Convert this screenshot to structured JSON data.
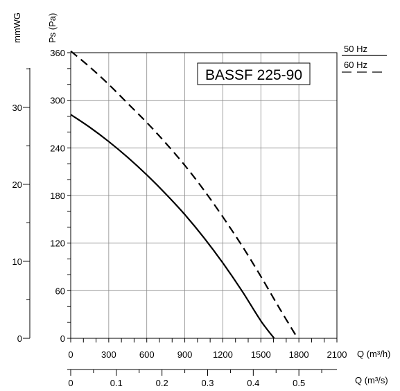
{
  "chart_data": {
    "type": "line",
    "title": "BASSF 225-90",
    "y_left_outer": {
      "label": "mmWG",
      "range": [
        0,
        37
      ],
      "ticks": [
        0,
        10,
        20,
        30
      ],
      "tick_labels": [
        "0",
        "10",
        "20",
        "30"
      ]
    },
    "y_left_inner": {
      "label": "Ps (Pa)",
      "range": [
        0,
        360
      ],
      "ticks": [
        0,
        60,
        120,
        180,
        240,
        300,
        360
      ],
      "tick_labels": [
        "0",
        "60",
        "120",
        "180",
        "240",
        "300",
        "360"
      ]
    },
    "x_primary": {
      "label": "Q (m³/h)",
      "range": [
        0,
        2100
      ],
      "ticks": [
        0,
        300,
        600,
        900,
        1200,
        1500,
        1800,
        2100
      ],
      "tick_labels": [
        "0",
        "300",
        "600",
        "900",
        "1200",
        "1500",
        "1800",
        "2100"
      ]
    },
    "x_secondary": {
      "label": "Q (m³/s)",
      "range": [
        0,
        0.5833
      ],
      "ticks": [
        0,
        0.1,
        0.2,
        0.3,
        0.4,
        0.5
      ],
      "tick_labels": [
        "0",
        "0.1",
        "0.2",
        "0.3",
        "0.4",
        "0.5"
      ]
    },
    "grid": true,
    "legend_position": "top-right",
    "legend": [
      {
        "label": "50 Hz",
        "style": "solid"
      },
      {
        "label": "60 Hz",
        "style": "dashed"
      }
    ],
    "series": [
      {
        "name": "50 Hz",
        "style": "solid",
        "x": [
          0,
          150,
          300,
          450,
          600,
          750,
          900,
          1050,
          1200,
          1350,
          1500,
          1605
        ],
        "y": [
          282,
          266,
          248,
          228,
          206,
          182,
          156,
          127,
          95,
          60,
          22,
          0
        ]
      },
      {
        "name": "60 Hz",
        "style": "dashed",
        "x": [
          0,
          150,
          300,
          450,
          600,
          750,
          900,
          1050,
          1200,
          1350,
          1500,
          1650,
          1790
        ],
        "y": [
          362,
          342,
          320,
          296,
          272,
          246,
          218,
          187,
          153,
          117,
          78,
          37,
          0
        ]
      }
    ]
  }
}
